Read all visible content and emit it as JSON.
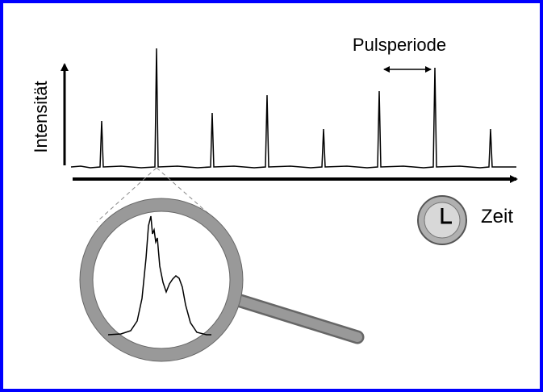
{
  "labels": {
    "y_axis": "Intensität",
    "period": "Pulsperiode",
    "time": "Zeit"
  }
}
